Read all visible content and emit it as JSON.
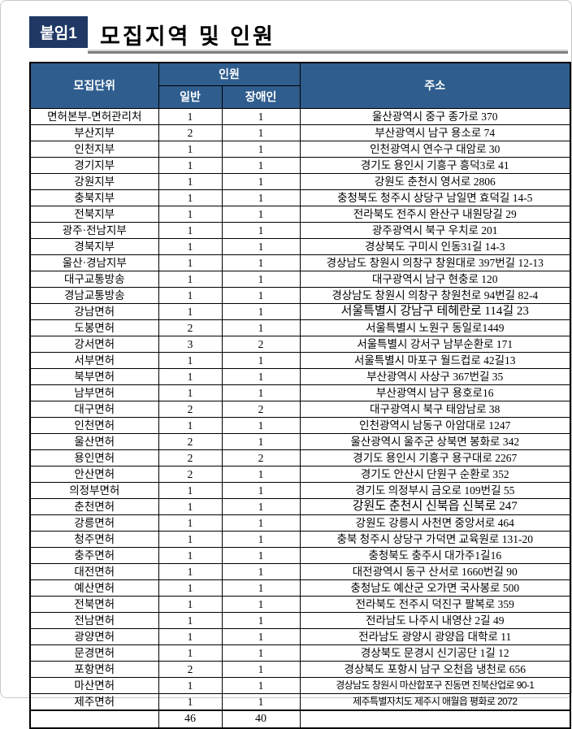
{
  "page": {
    "badge": "붙임1",
    "title": "모집지역 및 인원"
  },
  "colors": {
    "badge_bg": "#1F3864",
    "table_header_bg": "#2F5D8E",
    "title_rule_gray": "#7F7F7F"
  },
  "table": {
    "headers": {
      "unit": "모집단위",
      "personnel": "인원",
      "general": "일반",
      "disabled": "장애인",
      "address": "주소"
    },
    "rows": [
      {
        "unit": "면허본부-면허관리처",
        "general": "1",
        "disabled": "1",
        "address": "울산광역시 중구 종가로 370"
      },
      {
        "unit": "부산지부",
        "general": "2",
        "disabled": "1",
        "address": "부산광역시 남구 용소로 74"
      },
      {
        "unit": "인천지부",
        "general": "1",
        "disabled": "1",
        "address": "인천광역시 연수구 대암로 30"
      },
      {
        "unit": "경기지부",
        "general": "1",
        "disabled": "1",
        "address": "경기도 용인시 기흥구 흥덕3로 41"
      },
      {
        "unit": "강원지부",
        "general": "1",
        "disabled": "1",
        "address": "강원도 춘천시 영서로 2806"
      },
      {
        "unit": "충북지부",
        "general": "1",
        "disabled": "1",
        "address": "충청북도 청주시 상당구 남일면 효덕길 14-5"
      },
      {
        "unit": "전북지부",
        "general": "1",
        "disabled": "1",
        "address": "전라북도 전주시 완산구 내원당길 29"
      },
      {
        "unit": "광주·전남지부",
        "general": "1",
        "disabled": "1",
        "address": "광주광역시 북구 우치로 201"
      },
      {
        "unit": "경북지부",
        "general": "1",
        "disabled": "1",
        "address": "경상북도 구미시 인동31길 14-3"
      },
      {
        "unit": "울산·경남지부",
        "general": "1",
        "disabled": "1",
        "address": "경상남도 창원시 의창구 창원대로 397번길 12-13"
      },
      {
        "unit": "대구교통방송",
        "general": "1",
        "disabled": "1",
        "address": "대구광역시 남구 현충로 120"
      },
      {
        "unit": "경남교통방송",
        "general": "1",
        "disabled": "1",
        "address": "경상남도 창원시 의창구 창원천로 94번길 82-4"
      },
      {
        "unit": "강남면허",
        "general": "1",
        "disabled": "1",
        "address": "서울특별시 강남구 테헤란로 114길 23",
        "style": "lg"
      },
      {
        "unit": "도봉면허",
        "general": "2",
        "disabled": "1",
        "address": "서울특별시 노원구 동일로1449"
      },
      {
        "unit": "강서면허",
        "general": "3",
        "disabled": "2",
        "address": "서울특별시 강서구 남부순환로 171"
      },
      {
        "unit": "서부면허",
        "general": "1",
        "disabled": "1",
        "address": "서울특별시 마포구 월드컵로 42길13"
      },
      {
        "unit": "북부면허",
        "general": "1",
        "disabled": "1",
        "address": "부산광역시 사상구 367번길 35"
      },
      {
        "unit": "남부면허",
        "general": "1",
        "disabled": "1",
        "address": "부산광역시 남구 용호로16"
      },
      {
        "unit": "대구면허",
        "general": "2",
        "disabled": "2",
        "address": "대구광역시 북구 태암남로 38"
      },
      {
        "unit": "인천면허",
        "general": "1",
        "disabled": "1",
        "address": "인천광역시 남동구 아암대로 1247"
      },
      {
        "unit": "울산면허",
        "general": "2",
        "disabled": "1",
        "address": "울산광역시 울주군 상북면 봉화로 342"
      },
      {
        "unit": "용인면허",
        "general": "2",
        "disabled": "2",
        "address": "경기도 용인시 기흥구 용구대로 2267"
      },
      {
        "unit": "안산면허",
        "general": "2",
        "disabled": "1",
        "address": "경기도 안산시 단원구 순환로 352"
      },
      {
        "unit": "의정부면허",
        "general": "1",
        "disabled": "1",
        "address": "경기도 의정부시 금오로 109번길 55"
      },
      {
        "unit": "춘천면허",
        "general": "1",
        "disabled": "1",
        "address": "강원도 춘천시 신북읍 신북로 247",
        "style": "lg"
      },
      {
        "unit": "강릉면허",
        "general": "1",
        "disabled": "1",
        "address": "강원도 강릉시 사천면 중앙서로 464"
      },
      {
        "unit": "청주면허",
        "general": "1",
        "disabled": "1",
        "address": "충북 청주시 상당구 가덕면 교육원로 131-20"
      },
      {
        "unit": "충주면허",
        "general": "1",
        "disabled": "1",
        "address": "충청북도 충주시 대가주1길16"
      },
      {
        "unit": "대전면허",
        "general": "1",
        "disabled": "1",
        "address": "대전광역시 동구 산서로 1660번길 90"
      },
      {
        "unit": "예산면허",
        "general": "1",
        "disabled": "1",
        "address": "충청남도 예산군 오가면 국사봉로 500"
      },
      {
        "unit": "전북면허",
        "general": "1",
        "disabled": "1",
        "address": "전라북도 전주시 덕진구 팔복로 359"
      },
      {
        "unit": "전남면허",
        "general": "1",
        "disabled": "1",
        "address": "전라남도 나주시 내영산 2길 49"
      },
      {
        "unit": "광양면허",
        "general": "1",
        "disabled": "1",
        "address": "전라남도 광양시 광양읍 대학로 11"
      },
      {
        "unit": "문경면허",
        "general": "1",
        "disabled": "1",
        "address": "경상북도 문경시 신기공단 1길 12"
      },
      {
        "unit": "포항면허",
        "general": "2",
        "disabled": "1",
        "address": "경상북도 포항시 남구 오천읍 냉천로 656"
      },
      {
        "unit": "마산면허",
        "general": "1",
        "disabled": "1",
        "address": "경상남도 창원시 마산합포구 진동면 진북산업로 90-1",
        "style": "compact"
      },
      {
        "unit": "제주면허",
        "general": "1",
        "disabled": "1",
        "address": "제주특별자치도 제주시 애월읍 평화로 2072",
        "style": "compact"
      }
    ],
    "totals": {
      "unit": "",
      "general": "46",
      "disabled": "40",
      "address": ""
    }
  }
}
